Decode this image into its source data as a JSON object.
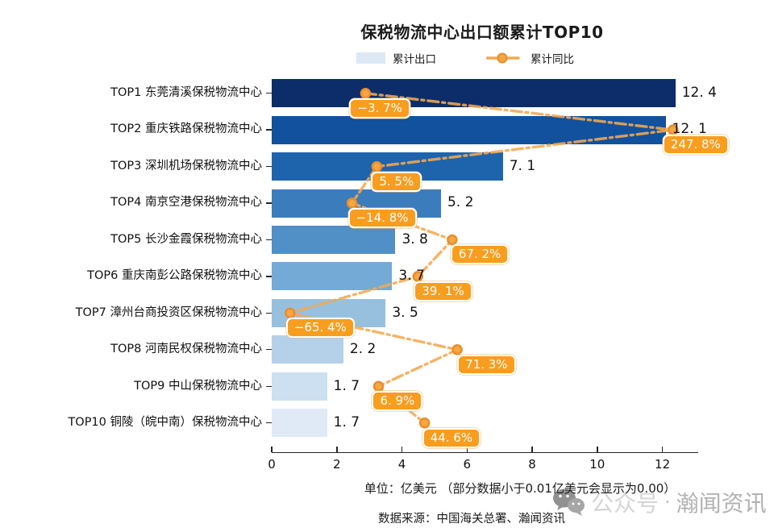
{
  "title": "保税物流中心出口额累计TOP10",
  "legend": {
    "bar_label": "累计出口",
    "line_label": "累计同比"
  },
  "footer": {
    "unit_note": "单位：亿美元 （部分数据小于0.01亿美元会显示为0.00）",
    "source": "数据来源：中国海关总署、瀚闻资讯"
  },
  "watermark": {
    "icon": "wechat-icon",
    "prefix": "公众号",
    "separator": "·",
    "name": "瀚闻资讯"
  },
  "colors": {
    "bar_colors": [
      "#0c2d6a",
      "#11519e",
      "#1d64ad",
      "#3a7cbc",
      "#518fc7",
      "#74aad6",
      "#97c0df",
      "#b4d1e9",
      "#cde0f1",
      "#e0eaf7"
    ],
    "legend_swatch": "#dce9f5",
    "line": "#f4a950",
    "marker_fill": "#f6a644",
    "marker_edge": "#e98e2b",
    "label_bg": "#f89d1e",
    "label_text": "#ffffff",
    "axis": "#262626"
  },
  "chart_data": {
    "type": "bar",
    "orientation": "horizontal",
    "title": "保税物流中心出口额累计TOP10",
    "categories": [
      "TOP1 东莞清溪保税物流中心",
      "TOP2 重庆铁路保税物流中心",
      "TOP3 深圳机场保税物流中心",
      "TOP4 南京空港保税物流中心",
      "TOP5 长沙金霞保税物流中心",
      "TOP6 重庆南彭公路保税物流中心",
      "TOP7 漳州台商投资区保税物流中心",
      "TOP8 河南民权保税物流中心",
      "TOP9 中山保税物流中心",
      "TOP10 铜陵（皖中南）保税物流中心"
    ],
    "series": [
      {
        "name": "累计出口",
        "type": "bar",
        "unit": "亿美元",
        "values": [
          12.4,
          12.1,
          7.1,
          5.2,
          3.8,
          3.7,
          3.5,
          2.2,
          1.7,
          1.7
        ],
        "value_labels": [
          "12. 4",
          "12. 1",
          "7. 1",
          "5. 2",
          "3. 8",
          "3. 7",
          "3. 5",
          "2. 2",
          "1. 7",
          "1. 7"
        ]
      },
      {
        "name": "累计同比",
        "type": "line",
        "unit": "%",
        "values": [
          -3.7,
          247.8,
          5.5,
          -14.8,
          67.2,
          39.1,
          -65.4,
          71.3,
          6.9,
          44.6
        ],
        "value_labels": [
          "−3. 7%",
          "247. 8%",
          "5. 5%",
          "−14. 8%",
          "67. 2%",
          "39. 1%",
          "−65. 4%",
          "71. 3%",
          "6. 9%",
          "44. 6%"
        ]
      }
    ],
    "xlabel": "",
    "ylabel": "",
    "x_ticks": [
      0,
      2,
      4,
      6,
      8,
      10,
      12
    ],
    "x_tick_labels": [
      "0",
      "2",
      "4",
      "6",
      "8",
      "10",
      "12"
    ],
    "xlim": [
      0,
      13.1
    ],
    "grid": false,
    "legend_position": "top"
  }
}
